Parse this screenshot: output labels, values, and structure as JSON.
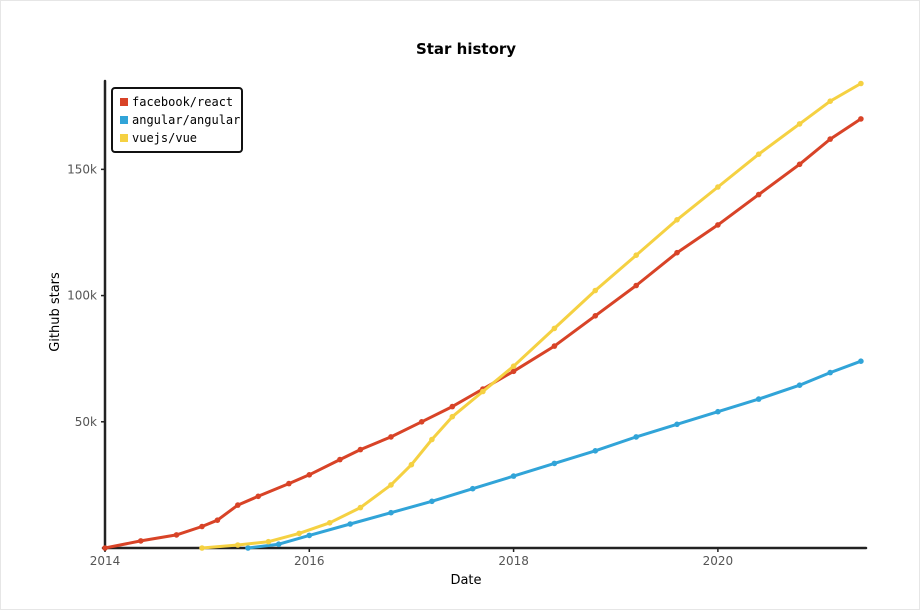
{
  "chart_data": {
    "type": "line",
    "title": "Star history",
    "xlabel": "Date",
    "ylabel": "Github stars",
    "xlim": [
      2014.0,
      2021.45
    ],
    "ylim": [
      0,
      185000
    ],
    "x_ticks": [
      2014,
      2016,
      2018,
      2020
    ],
    "x_tick_labels": [
      "2014",
      "2016",
      "2018",
      "2020"
    ],
    "y_ticks": [
      50000,
      100000,
      150000
    ],
    "y_tick_labels": [
      "50k",
      "100k",
      "150k"
    ],
    "legend_position": "top-left",
    "series": [
      {
        "name": "facebook/react",
        "color": "#d84327",
        "points": [
          [
            2014.0,
            0
          ],
          [
            2014.35,
            2800
          ],
          [
            2014.7,
            5200
          ],
          [
            2014.95,
            8500
          ],
          [
            2015.1,
            11000
          ],
          [
            2015.3,
            17000
          ],
          [
            2015.5,
            20500
          ],
          [
            2015.8,
            25500
          ],
          [
            2016.0,
            29000
          ],
          [
            2016.3,
            35000
          ],
          [
            2016.5,
            39000
          ],
          [
            2016.8,
            44000
          ],
          [
            2017.1,
            50000
          ],
          [
            2017.4,
            56000
          ],
          [
            2017.7,
            63000
          ],
          [
            2018.0,
            70000
          ],
          [
            2018.4,
            80000
          ],
          [
            2018.8,
            92000
          ],
          [
            2019.2,
            104000
          ],
          [
            2019.6,
            117000
          ],
          [
            2020.0,
            128000
          ],
          [
            2020.4,
            140000
          ],
          [
            2020.8,
            152000
          ],
          [
            2021.1,
            162000
          ],
          [
            2021.4,
            170000
          ]
        ]
      },
      {
        "name": "angular/angular",
        "color": "#31a4d8",
        "points": [
          [
            2015.4,
            0
          ],
          [
            2015.7,
            1500
          ],
          [
            2016.0,
            5000
          ],
          [
            2016.4,
            9500
          ],
          [
            2016.8,
            14000
          ],
          [
            2017.2,
            18500
          ],
          [
            2017.6,
            23500
          ],
          [
            2018.0,
            28500
          ],
          [
            2018.4,
            33500
          ],
          [
            2018.8,
            38500
          ],
          [
            2019.2,
            44000
          ],
          [
            2019.6,
            49000
          ],
          [
            2020.0,
            54000
          ],
          [
            2020.4,
            59000
          ],
          [
            2020.8,
            64500
          ],
          [
            2021.1,
            69500
          ],
          [
            2021.4,
            74000
          ]
        ]
      },
      {
        "name": "vuejs/vue",
        "color": "#f5d142",
        "points": [
          [
            2014.95,
            0
          ],
          [
            2015.3,
            1200
          ],
          [
            2015.6,
            2500
          ],
          [
            2015.9,
            5800
          ],
          [
            2016.2,
            10000
          ],
          [
            2016.5,
            16000
          ],
          [
            2016.8,
            25000
          ],
          [
            2017.0,
            33000
          ],
          [
            2017.2,
            43000
          ],
          [
            2017.4,
            52000
          ],
          [
            2017.7,
            62000
          ],
          [
            2018.0,
            72000
          ],
          [
            2018.4,
            87000
          ],
          [
            2018.8,
            102000
          ],
          [
            2019.2,
            116000
          ],
          [
            2019.6,
            130000
          ],
          [
            2020.0,
            143000
          ],
          [
            2020.4,
            156000
          ],
          [
            2020.8,
            168000
          ],
          [
            2021.1,
            177000
          ],
          [
            2021.4,
            184000
          ]
        ]
      }
    ]
  }
}
